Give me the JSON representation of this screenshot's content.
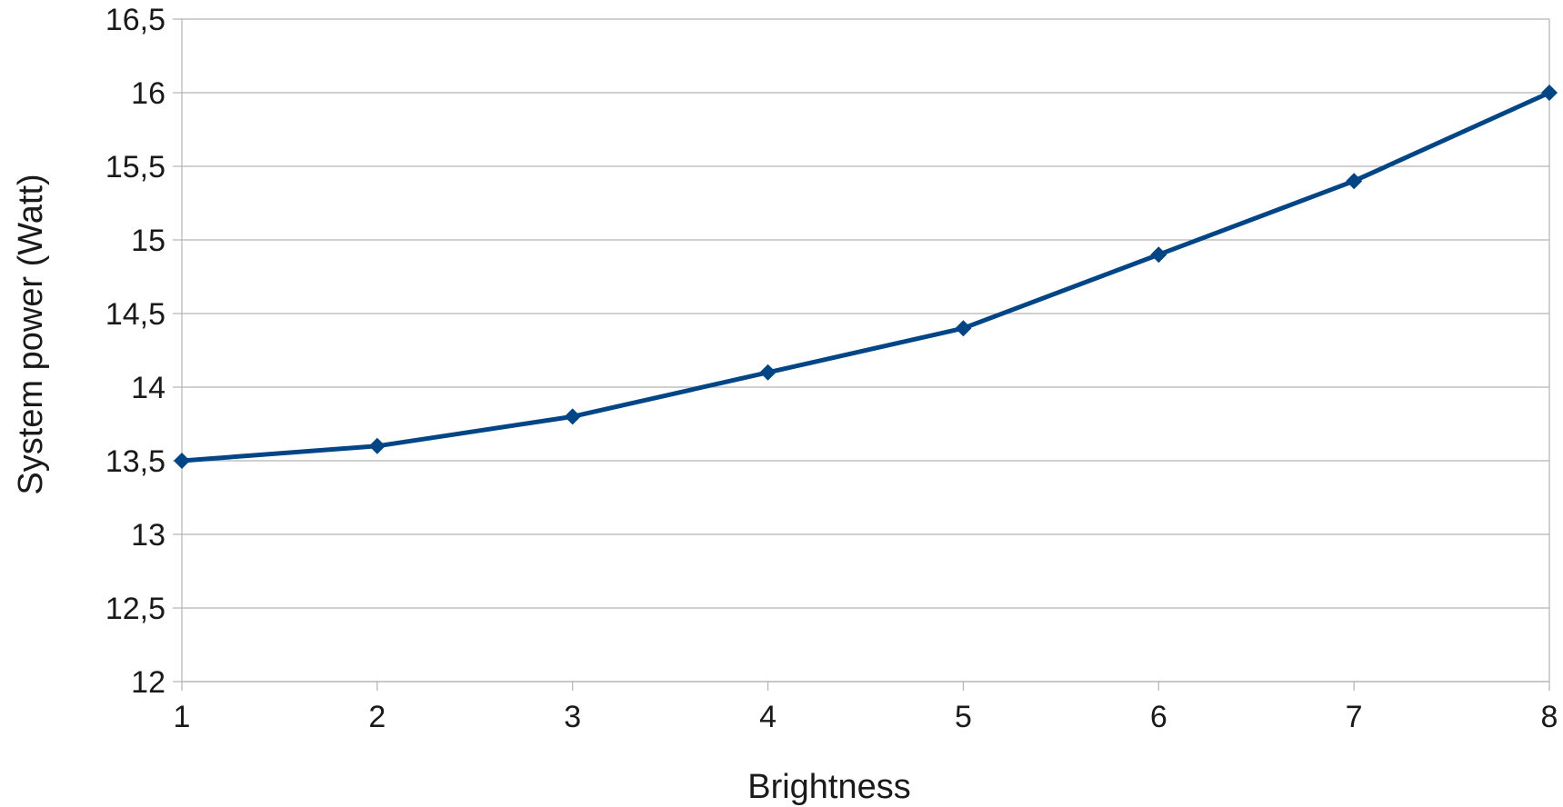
{
  "chart_data": {
    "type": "line",
    "title": "",
    "xlabel": "Brightness",
    "ylabel": "System power (Watt)",
    "x": [
      1,
      2,
      3,
      4,
      5,
      6,
      7,
      8
    ],
    "xlim": [
      1,
      8
    ],
    "ylim": [
      12,
      16.5
    ],
    "x_ticks": [
      "1",
      "2",
      "3",
      "4",
      "5",
      "6",
      "7",
      "8"
    ],
    "y_ticks": [
      {
        "value": 12,
        "label": "12"
      },
      {
        "value": 12.5,
        "label": "12,5"
      },
      {
        "value": 13,
        "label": "13"
      },
      {
        "value": 13.5,
        "label": "13,5"
      },
      {
        "value": 14,
        "label": "14"
      },
      {
        "value": 14.5,
        "label": "14,5"
      },
      {
        "value": 15,
        "label": "15"
      },
      {
        "value": 15.5,
        "label": "15,5"
      },
      {
        "value": 16,
        "label": "16"
      },
      {
        "value": 16.5,
        "label": "16,5"
      }
    ],
    "grid": "horizontal",
    "legend": "none",
    "marker": "diamond",
    "series": [
      {
        "color": "#004586",
        "values": [
          13.5,
          13.6,
          13.8,
          14.1,
          14.4,
          14.9,
          15.4,
          16.0
        ]
      }
    ]
  }
}
